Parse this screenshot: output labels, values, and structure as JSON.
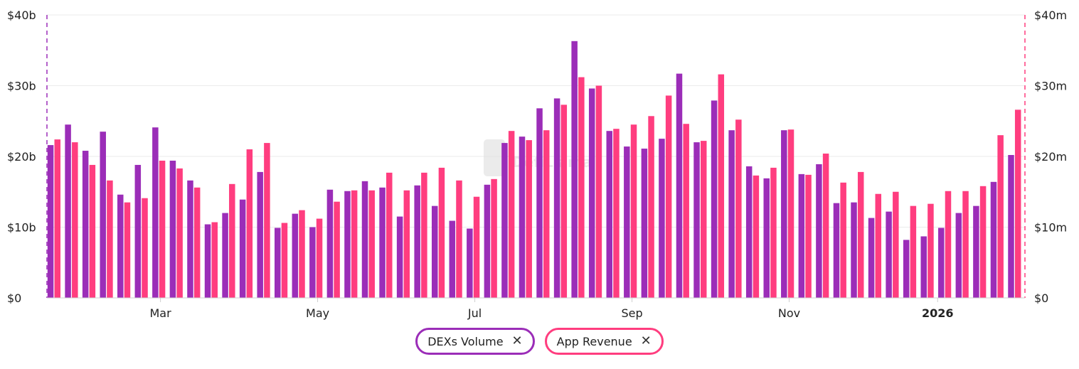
{
  "chart_data": {
    "type": "bar",
    "title": "",
    "left_axis": {
      "ticks": [
        "$0",
        "$10b",
        "$20b",
        "$30b",
        "$40b"
      ],
      "ylim": [
        0,
        40
      ],
      "unit": "billion USD"
    },
    "right_axis": {
      "ticks": [
        "$0",
        "$10m",
        "$20m",
        "$30m",
        "$40m"
      ],
      "ylim": [
        0,
        40
      ],
      "unit": "million USD"
    },
    "x_ticks": [
      {
        "label": "Mar",
        "week": 6,
        "bold": false
      },
      {
        "label": "May",
        "week": 15,
        "bold": false
      },
      {
        "label": "Jul",
        "week": 24,
        "bold": false
      },
      {
        "label": "Sep",
        "week": 33,
        "bold": false
      },
      {
        "label": "Nov",
        "week": 42,
        "bold": false
      },
      {
        "label": "2026",
        "week": 50.5,
        "bold": true
      }
    ],
    "series": [
      {
        "name": "DEXs Volume",
        "axis": "left",
        "color": "#9b2db8",
        "values": [
          21.6,
          24.5,
          20.8,
          23.5,
          14.6,
          18.8,
          24.1,
          19.4,
          16.6,
          10.4,
          12.0,
          13.9,
          17.8,
          9.9,
          11.9,
          10.0,
          15.3,
          15.1,
          16.5,
          15.6,
          11.5,
          15.9,
          13.0,
          10.9,
          9.8,
          16.0,
          21.9,
          22.8,
          26.8,
          28.2,
          36.3,
          29.6,
          23.6,
          21.4,
          21.1,
          22.5,
          31.7,
          22.0,
          27.9,
          23.7,
          18.6,
          16.9,
          23.7,
          17.5,
          18.9,
          13.4,
          13.5,
          11.3,
          12.2,
          8.2,
          8.7,
          9.9,
          12.0,
          13.0,
          16.4,
          20.2
        ]
      },
      {
        "name": "App Revenue",
        "axis": "right",
        "color": "#ff3d7f",
        "values": [
          22.4,
          22.0,
          18.8,
          16.6,
          13.5,
          14.1,
          19.4,
          18.3,
          15.6,
          10.7,
          16.1,
          21.0,
          21.9,
          10.6,
          12.4,
          11.2,
          13.6,
          15.2,
          15.2,
          17.7,
          15.2,
          17.7,
          18.4,
          16.6,
          14.3,
          16.8,
          23.6,
          22.3,
          23.7,
          27.3,
          31.2,
          30.0,
          23.9,
          24.5,
          25.7,
          28.6,
          24.6,
          22.2,
          31.6,
          25.2,
          17.3,
          18.4,
          23.8,
          17.4,
          20.4,
          16.3,
          17.8,
          14.7,
          15.0,
          13.0,
          13.3,
          15.1,
          15.1,
          15.8,
          23.0,
          26.6
        ]
      }
    ],
    "legend_position": "bottom-center",
    "grid": true
  },
  "legend": {
    "items": [
      {
        "label": "DEXs Volume",
        "color": "#9b2db8"
      },
      {
        "label": "App Revenue",
        "color": "#ff3d7f"
      }
    ],
    "remove_symbol": "✕"
  },
  "watermark": {
    "text": "DefiLlama"
  }
}
